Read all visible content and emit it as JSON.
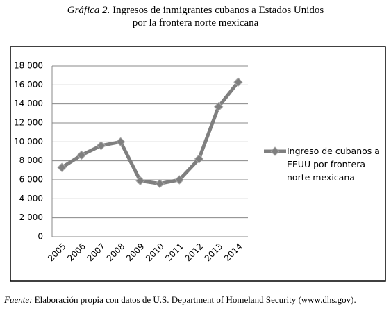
{
  "chart_data": {
    "type": "line",
    "title_label": "Gráfica 2.",
    "title_lines": [
      "Ingresos de inmigrantes cubanos a Estados Unidos",
      "por la frontera norte mexicana"
    ],
    "categories": [
      "2005",
      "2006",
      "2007",
      "2008",
      "2009",
      "2010",
      "2011",
      "2012",
      "2013",
      "2014"
    ],
    "series": [
      {
        "name": "Ingreso de cubanos a EEUU por frontera norte mexicana",
        "color": "#7f7f7f",
        "values": [
          7300,
          8600,
          9600,
          10000,
          5900,
          5600,
          6000,
          8200,
          13700,
          16300
        ]
      }
    ],
    "ylim": [
      0,
      18000
    ],
    "yticks": [
      0,
      {
        "value": 2000,
        "label": "2 000"
      },
      {
        "value": 4000,
        "label": "4 000"
      },
      {
        "value": 6000,
        "label": "6 000"
      },
      {
        "value": 8000,
        "label": "8 000"
      },
      {
        "value": 10000,
        "label": "10 000"
      },
      {
        "value": 12000,
        "label": "12 000"
      },
      {
        "value": 14000,
        "label": "14 000"
      },
      {
        "value": 16000,
        "label": "16 000"
      },
      {
        "value": 18000,
        "label": "18 000"
      }
    ],
    "grid": true,
    "legend": "right",
    "source_label": "Fuente:",
    "source": "Elaboración propia con datos de U.S. Department of Homeland Security (www.dhs.gov)."
  }
}
